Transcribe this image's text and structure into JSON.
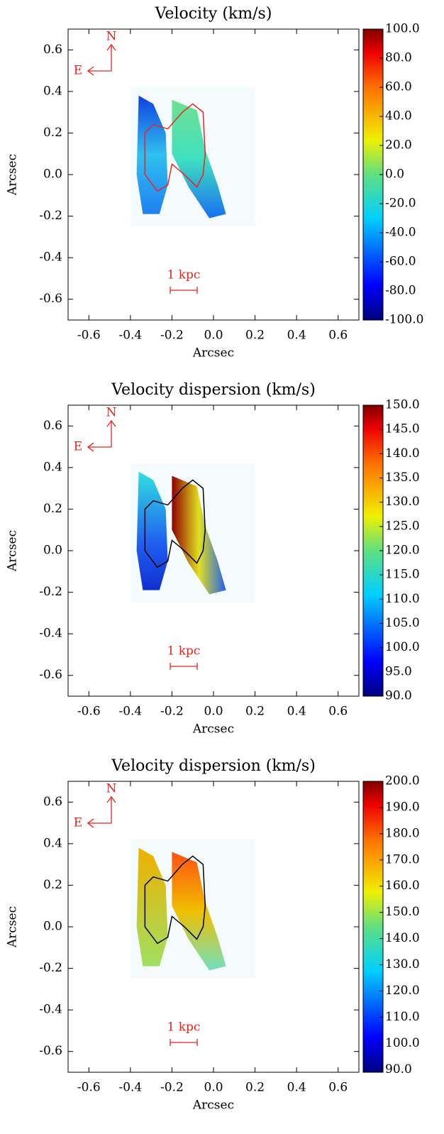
{
  "chart_data": [
    {
      "type": "map",
      "title": "Velocity (km/s)",
      "x_label": "Arcsec",
      "y_label": "Arcsec",
      "xlim": [
        -0.7,
        0.7
      ],
      "ylim": [
        -0.7,
        0.7
      ],
      "xticks": [
        -0.6,
        -0.4,
        -0.2,
        {
          "value": 0,
          "label": "0.0"
        },
        0.2,
        0.4,
        0.6
      ],
      "yticks": [
        -0.6,
        -0.4,
        -0.2,
        {
          "value": 0,
          "label": "0.0"
        },
        0.2,
        0.4,
        0.6
      ],
      "clim": [
        -100,
        100
      ],
      "cticks": [
        {
          "value": 100,
          "label": "100.0"
        },
        {
          "value": 80,
          "label": "80.0"
        },
        {
          "value": 60,
          "label": "60.0"
        },
        {
          "value": 40,
          "label": "40.0"
        },
        {
          "value": 20,
          "label": "20.0"
        },
        {
          "value": 0,
          "label": "0.0"
        },
        {
          "value": -20,
          "label": "-20.0"
        },
        {
          "value": -40,
          "label": "-40.0"
        },
        {
          "value": -60,
          "label": "-60.0"
        },
        {
          "value": -80,
          "label": "-80.0"
        },
        {
          "value": -100,
          "label": "-100.0"
        }
      ],
      "contour_color": "#e8251f",
      "annotations": [
        "N",
        "E",
        "1 kpc"
      ]
    },
    {
      "type": "map",
      "title": "Velocity dispersion (km/s)",
      "x_label": "Arcsec",
      "y_label": "Arcsec",
      "xlim": [
        -0.7,
        0.7
      ],
      "ylim": [
        -0.7,
        0.7
      ],
      "xticks": [
        -0.6,
        -0.4,
        -0.2,
        {
          "value": 0,
          "label": "0.0"
        },
        0.2,
        0.4,
        0.6
      ],
      "yticks": [
        -0.6,
        -0.4,
        -0.2,
        {
          "value": 0,
          "label": "0.0"
        },
        0.2,
        0.4,
        0.6
      ],
      "clim": [
        90,
        150
      ],
      "cticks": [
        {
          "value": 150,
          "label": "150.0"
        },
        {
          "value": 145,
          "label": "145.0"
        },
        {
          "value": 140,
          "label": "140.0"
        },
        {
          "value": 135,
          "label": "135.0"
        },
        {
          "value": 130,
          "label": "130.0"
        },
        {
          "value": 125,
          "label": "125.0"
        },
        {
          "value": 120,
          "label": "120.0"
        },
        {
          "value": 115,
          "label": "115.0"
        },
        {
          "value": 110,
          "label": "110.0"
        },
        {
          "value": 105,
          "label": "105.0"
        },
        {
          "value": 100,
          "label": "100.0"
        },
        {
          "value": 95,
          "label": "95.0"
        },
        {
          "value": 90,
          "label": "90.0"
        }
      ],
      "contour_color": "#000000",
      "annotations": [
        "N",
        "E",
        "1 kpc"
      ]
    },
    {
      "type": "map",
      "title": "Velocity dispersion (km/s)",
      "x_label": "Arcsec",
      "y_label": "Arcsec",
      "xlim": [
        -0.7,
        0.7
      ],
      "ylim": [
        -0.7,
        0.7
      ],
      "xticks": [
        -0.6,
        -0.4,
        -0.2,
        {
          "value": 0,
          "label": "0.0"
        },
        0.2,
        0.4,
        0.6
      ],
      "yticks": [
        -0.6,
        -0.4,
        -0.2,
        {
          "value": 0,
          "label": "0.0"
        },
        0.2,
        0.4,
        0.6
      ],
      "clim": [
        89,
        200
      ],
      "cticks": [
        {
          "value": 200,
          "label": "200.0"
        },
        {
          "value": 190,
          "label": "190.0"
        },
        {
          "value": 180,
          "label": "180.0"
        },
        {
          "value": 170,
          "label": "170.0"
        },
        {
          "value": 160,
          "label": "160.0"
        },
        {
          "value": 150,
          "label": "150.0"
        },
        {
          "value": 140,
          "label": "140.0"
        },
        {
          "value": 130,
          "label": "130.0"
        },
        {
          "value": 120,
          "label": "120.0"
        },
        {
          "value": 110,
          "label": "110.0"
        },
        {
          "value": 100,
          "label": "100.0"
        },
        {
          "value": 90,
          "label": "90.0"
        }
      ],
      "contour_color": "#000000",
      "annotations": [
        "N",
        "E",
        "1 kpc"
      ]
    }
  ]
}
